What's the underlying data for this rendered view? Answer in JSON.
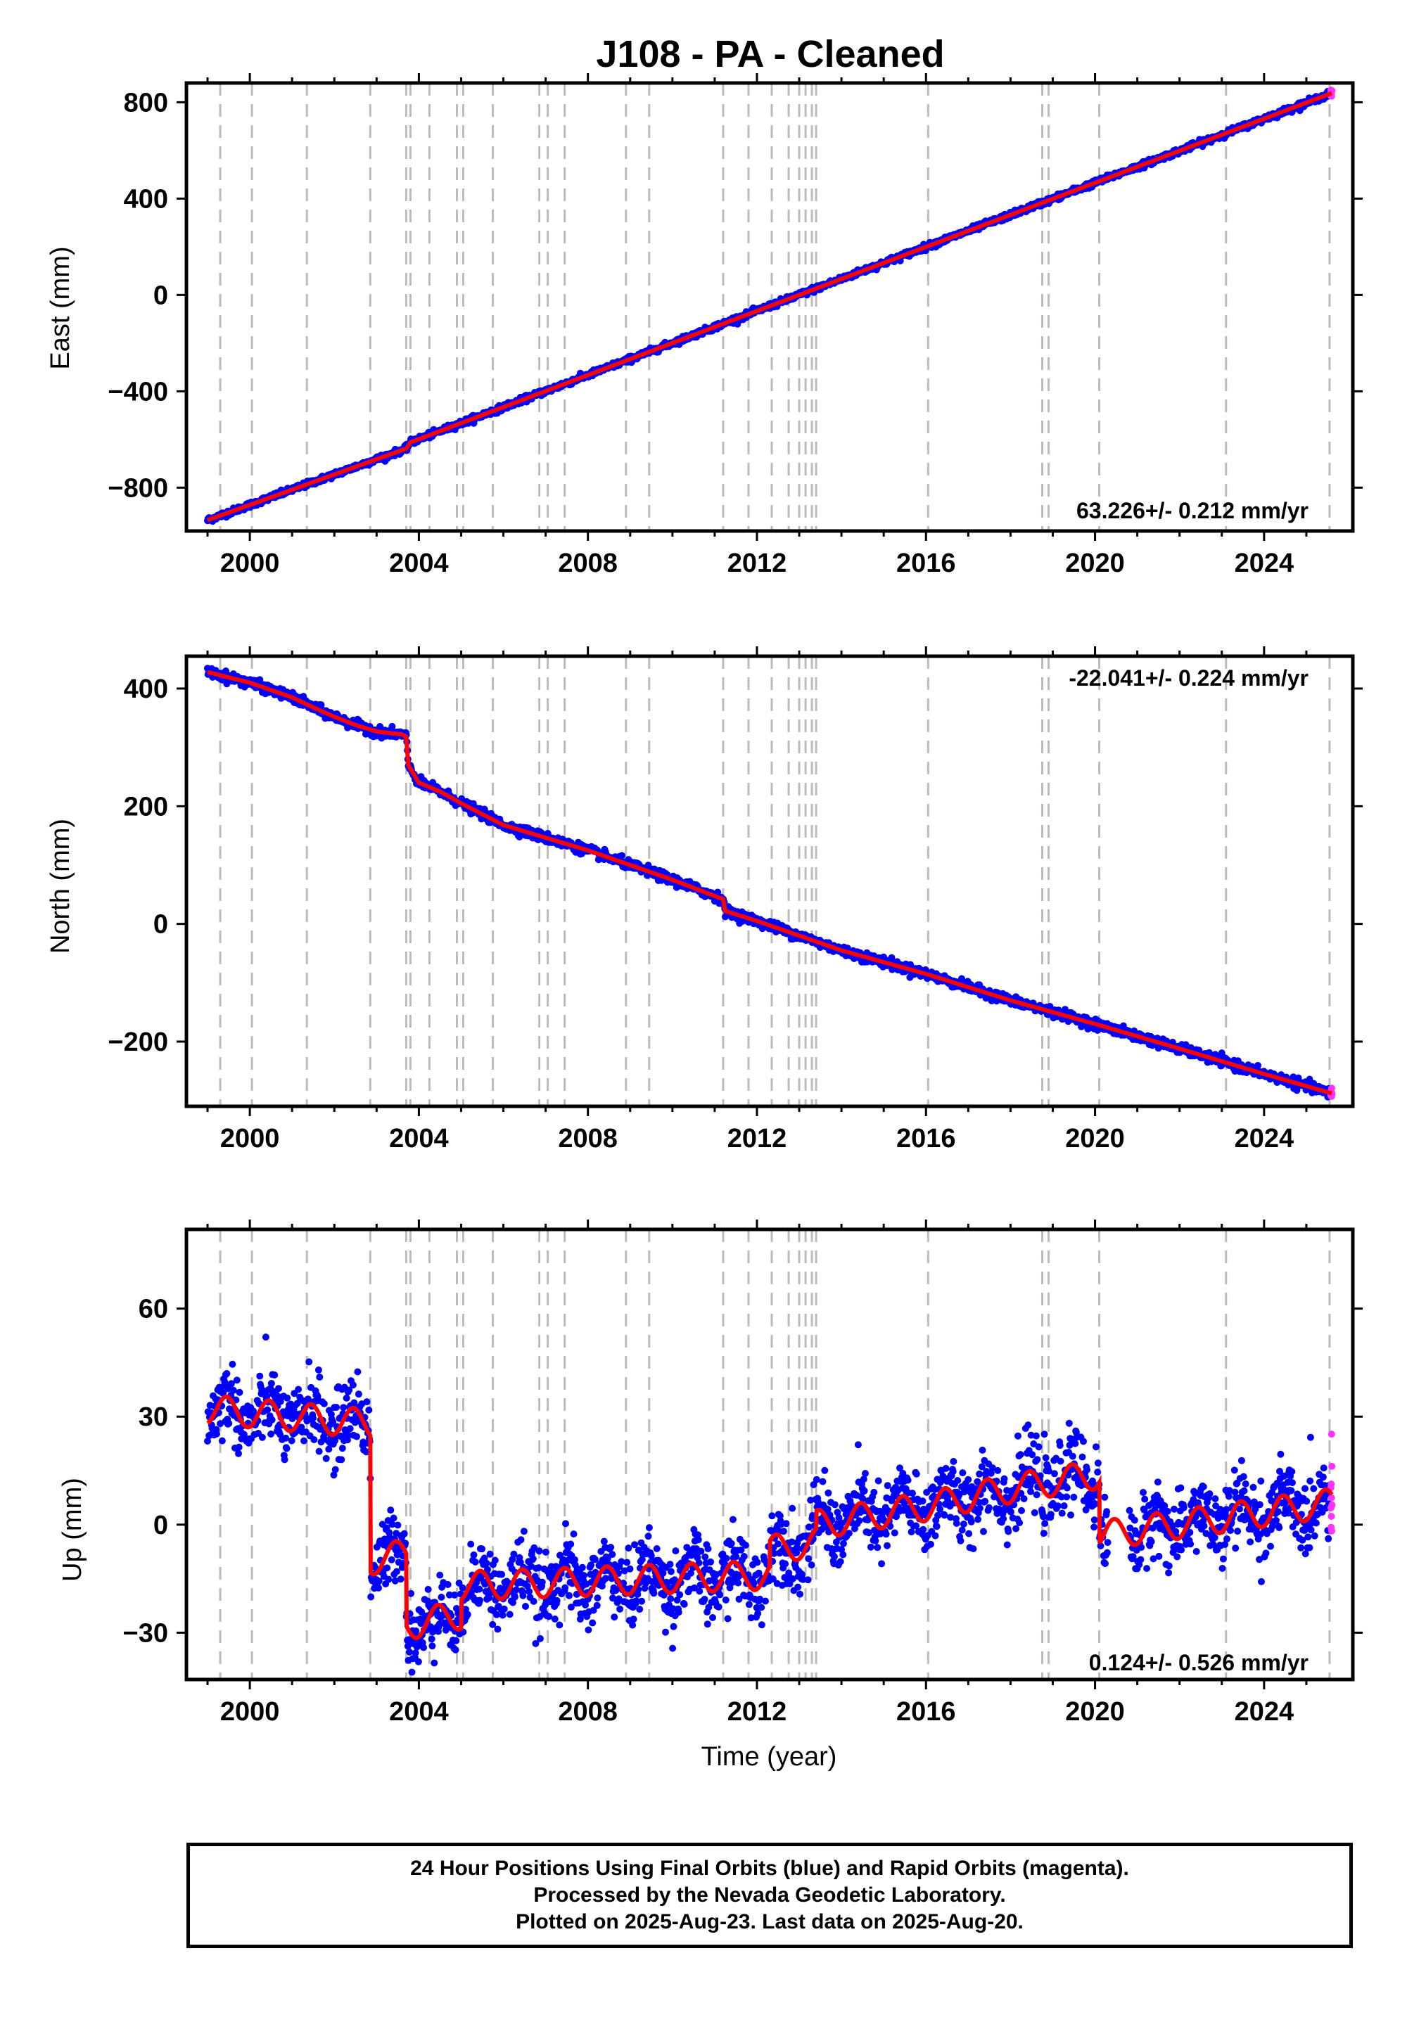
{
  "title": "J108  - PA - Cleaned",
  "colors": {
    "final": "#0000ff",
    "rapid": "#ff33ff",
    "model": "#ff0000",
    "events": "#bbbbbb"
  },
  "events": [
    1999.3,
    2000.05,
    2001.35,
    2002.85,
    2003.7,
    2003.8,
    2004.25,
    2004.9,
    2005.05,
    2005.75,
    2006.85,
    2007.05,
    2007.45,
    2008.9,
    2009.45,
    2011.2,
    2011.8,
    2012.35,
    2012.75,
    2013.0,
    2013.15,
    2013.3,
    2013.4,
    2016.05,
    2018.75,
    2018.9,
    2020.1,
    2023.1,
    2025.55
  ],
  "chart_data": [
    {
      "type": "scatter",
      "title": "J108  - PA - Cleaned",
      "xlabel": "",
      "ylabel": "East (mm)",
      "xlim": [
        1998.5,
        2026.1
      ],
      "ylim": [
        -980,
        880
      ],
      "xticks": [
        "2000",
        "2004",
        "2008",
        "2012",
        "2016",
        "2020",
        "2024"
      ],
      "yticks": [
        "800",
        "400",
        "0",
        "−400",
        "−800"
      ],
      "rate_label": "63.226+/- 0.212 mm/yr",
      "series": [
        {
          "label": "model",
          "x": [
            1999.0,
            2003.7,
            2003.8,
            2025.6
          ],
          "y": [
            -935,
            -638,
            -612,
            838
          ]
        }
      ],
      "noise": 6
    },
    {
      "type": "scatter",
      "title": "",
      "xlabel": "",
      "ylabel": "North (mm)",
      "xlim": [
        1998.5,
        2026.1
      ],
      "ylim": [
        -310,
        455
      ],
      "xticks": [
        "2000",
        "2004",
        "2008",
        "2012",
        "2016",
        "2020",
        "2024"
      ],
      "yticks": [
        "400",
        "200",
        "0",
        "−200"
      ],
      "rate_label": "-22.041+/- 0.224 mm/yr",
      "series": [
        {
          "label": "model",
          "x": [
            1999.0,
            2000.0,
            2001.0,
            2001.5,
            2002.0,
            2002.5,
            2003.0,
            2003.6,
            2003.7,
            2003.75,
            2004.0,
            2004.5,
            2005.0,
            2006.0,
            2008.0,
            2010.0,
            2011.2,
            2011.25,
            2012.0,
            2014.0,
            2016.0,
            2018.0,
            2020.0,
            2022.0,
            2024.0,
            2025.6
          ],
          "y": [
            428,
            410,
            385,
            368,
            352,
            338,
            327,
            322,
            318,
            270,
            240,
            225,
            205,
            168,
            125,
            75,
            42,
            22,
            5,
            -45,
            -85,
            -130,
            -170,
            -212,
            -255,
            -288
          ]
        }
      ],
      "noise": 4
    },
    {
      "type": "scatter",
      "title": "",
      "xlabel": "Time (year)",
      "ylabel": "Up (mm)",
      "xlim": [
        1998.5,
        2026.1
      ],
      "ylim": [
        -43,
        82
      ],
      "xticks": [
        "2000",
        "2004",
        "2008",
        "2012",
        "2016",
        "2020",
        "2024"
      ],
      "yticks": [
        "60",
        "30",
        "0",
        "−30"
      ],
      "rate_label": "0.124+/- 0.526 mm/yr",
      "series": [
        {
          "label": "model",
          "x": [
            1999.0,
            2002.85,
            2002.86,
            2003.7,
            2003.71,
            2005.0,
            2005.01,
            2012.3,
            2012.31,
            2013.4,
            2013.41,
            2016.0,
            2018.0,
            2020.1,
            2020.11,
            2025.6
          ],
          "y": [
            32,
            28,
            -10,
            -8,
            -28,
            -25,
            -17,
            -14,
            -7,
            -5,
            0,
            5,
            10,
            14,
            -3,
            6
          ]
        }
      ],
      "noise": 5
    }
  ],
  "footer": {
    "line1": "24 Hour Positions Using Final Orbits (blue) and Rapid Orbits (magenta).",
    "line2": "Processed by the Nevada Geodetic Laboratory.",
    "line3": "Plotted on 2025-Aug-23. Last data on 2025-Aug-20."
  }
}
